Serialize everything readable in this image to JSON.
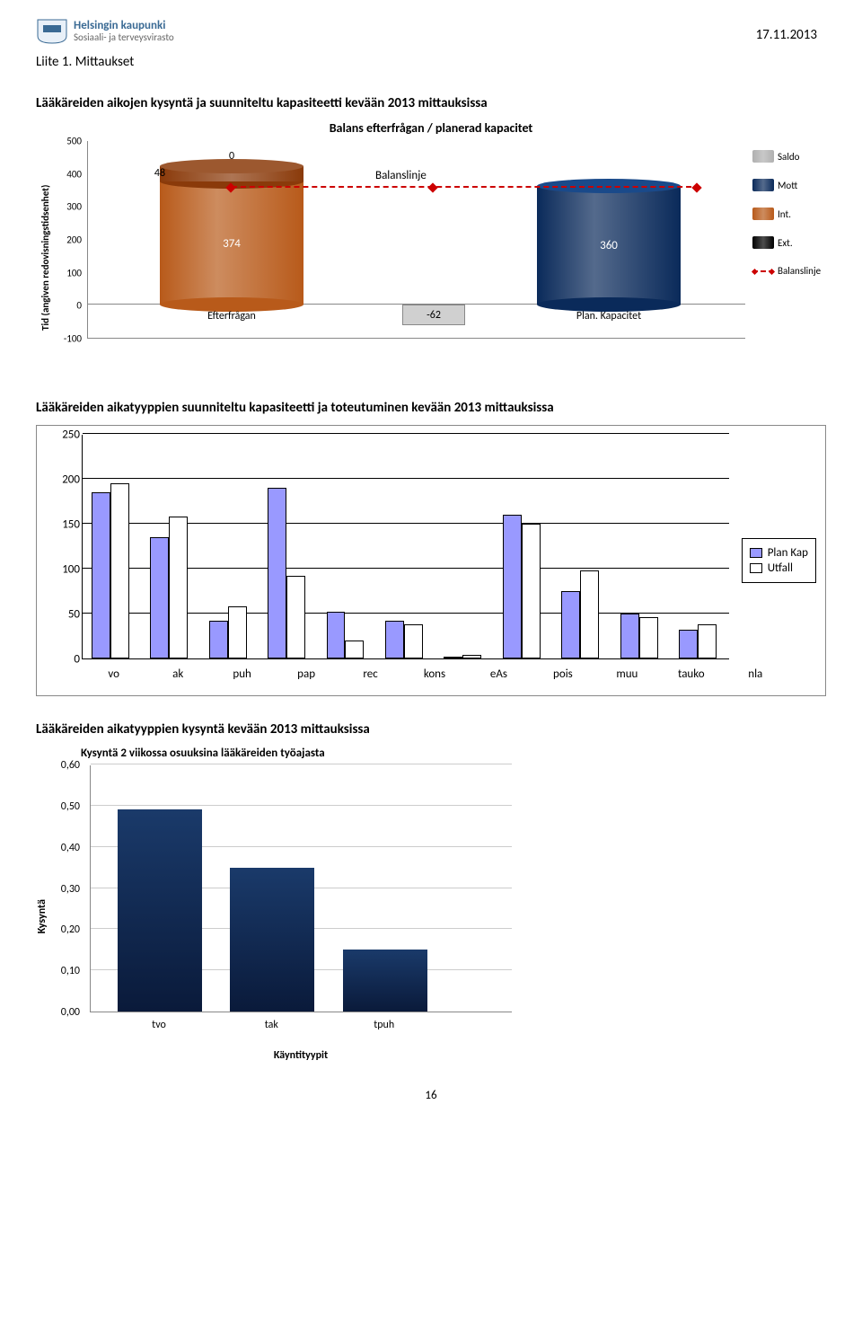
{
  "header": {
    "org_title": "Helsingin kaupunki",
    "org_sub": "Sosiaali- ja terveysvirasto",
    "date": "17.11.2013",
    "liite": "Liite 1. Mittaukset"
  },
  "section1": {
    "heading": "Lääkäreiden aikojen kysyntä ja suunniteltu kapasiteetti kevään 2013 mittauksissa",
    "chart_title": "Balans efterfrågan / planerad kapacitet",
    "yaxis_label": "Tid (angiven\nredovisningstidsenhet)",
    "ylim": [
      -100,
      500
    ],
    "yticks": [
      -100,
      0,
      100,
      200,
      300,
      400,
      500
    ],
    "balanslinje_text": "Balanslinje",
    "balanslinje_value": 355,
    "bars": [
      {
        "category": "Efterfrågan",
        "value": 374,
        "stack_value": 48,
        "stack_top_value": 0,
        "body_color": "#b85a1a",
        "top_color": "#8a3a0a"
      },
      {
        "category": "Plan. Kapacitet",
        "value": 360,
        "body_color": "#0a2a5a",
        "top_color": "#1a4a8a"
      }
    ],
    "neg_box": {
      "label": "-62"
    },
    "legend": [
      {
        "label": "Saldo",
        "color": "#b0b0b0"
      },
      {
        "label": "Mott",
        "color": "#0a2a5a"
      },
      {
        "label": "Int.",
        "color": "#b85a1a"
      },
      {
        "label": "Ext.",
        "color": "#000000"
      },
      {
        "label": "Balanslinje",
        "type": "line"
      }
    ]
  },
  "section2": {
    "heading": "Lääkäreiden aikatyyppien suunniteltu kapasiteetti ja toteutuminen kevään 2013 mittauksissa",
    "ylim": [
      0,
      250
    ],
    "yticks": [
      0,
      50,
      100,
      150,
      200,
      250
    ],
    "categories": [
      "vo",
      "ak",
      "puh",
      "pap",
      "rec",
      "kons",
      "eAs",
      "pois",
      "muu",
      "tauko",
      "nla"
    ],
    "series": [
      {
        "name": "Plan Kap",
        "color": "#9999ff",
        "values": [
          185,
          135,
          42,
          190,
          52,
          42,
          2,
          160,
          75,
          50,
          32
        ]
      },
      {
        "name": "Utfall",
        "color": "#ffffff",
        "values": [
          195,
          158,
          58,
          92,
          20,
          38,
          4,
          150,
          98,
          46,
          38
        ]
      }
    ]
  },
  "section3": {
    "heading": "Lääkäreiden aikatyyppien kysyntä kevään 2013 mittauksissa",
    "chart_title": "Kysyntä 2 viikossa osuuksina lääkäreiden työajasta",
    "yaxis_label": "Kysyntä",
    "xaxis_label": "Käyntityypit",
    "ylim": [
      0,
      0.6
    ],
    "yticks": [
      "0,00",
      "0,10",
      "0,20",
      "0,30",
      "0,40",
      "0,50",
      "0,60"
    ],
    "categories": [
      "tvo",
      "tak",
      "tpuh"
    ],
    "values": [
      0.49,
      0.35,
      0.15
    ],
    "bar_color": "#0a2a5a"
  },
  "page_number": "16"
}
